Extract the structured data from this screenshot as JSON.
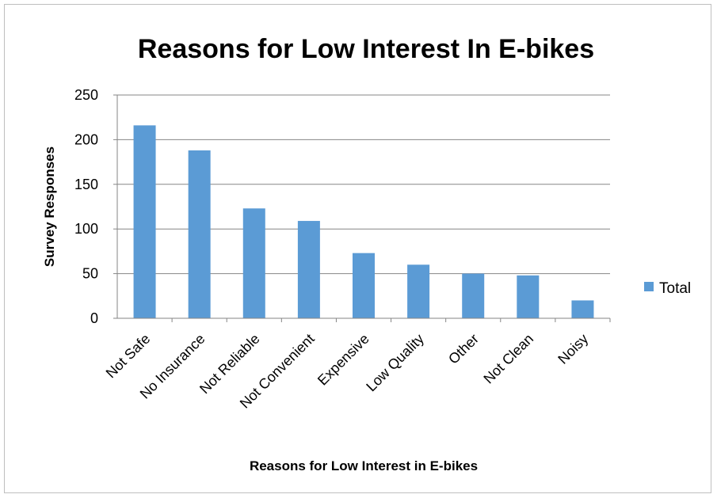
{
  "chart_data": {
    "type": "bar",
    "title": "Reasons for Low Interest In E-bikes",
    "xlabel": "Reasons for Low Interest in E-bikes",
    "ylabel": "Survey Responses",
    "categories": [
      "Not Safe",
      "No Insurance",
      "Not Reliable",
      "Not Convenient",
      "Expensive",
      "Low Quality",
      "Other",
      "Not Clean",
      "Noisy"
    ],
    "series": [
      {
        "name": "Total",
        "values": [
          216,
          188,
          123,
          109,
          73,
          60,
          50,
          48,
          20
        ],
        "color": "#5b9bd5"
      }
    ],
    "ylim": [
      0,
      250
    ],
    "yticks": [
      0,
      50,
      100,
      150,
      200,
      250
    ],
    "grid": true,
    "legend_position": "right"
  }
}
